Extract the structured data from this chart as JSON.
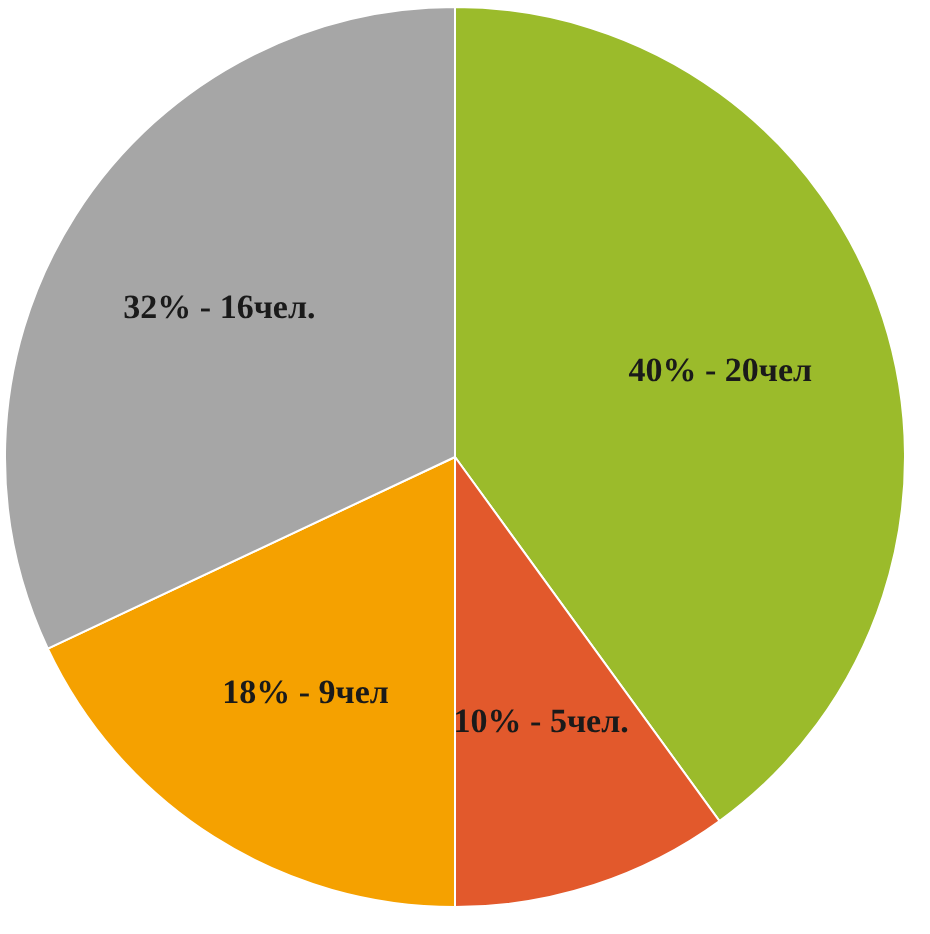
{
  "chart_data": {
    "type": "pie",
    "categories": [
      null,
      null,
      null,
      null
    ],
    "values": [
      40,
      10,
      18,
      32
    ],
    "colors": [
      "#9bbb2b",
      "#e2592c",
      "#f5a100",
      "#a6a6a6"
    ],
    "value_labels": [
      "40% - 20чел",
      "10% - 5чел.",
      "18% - 9чел",
      "32% - 16чел."
    ]
  }
}
